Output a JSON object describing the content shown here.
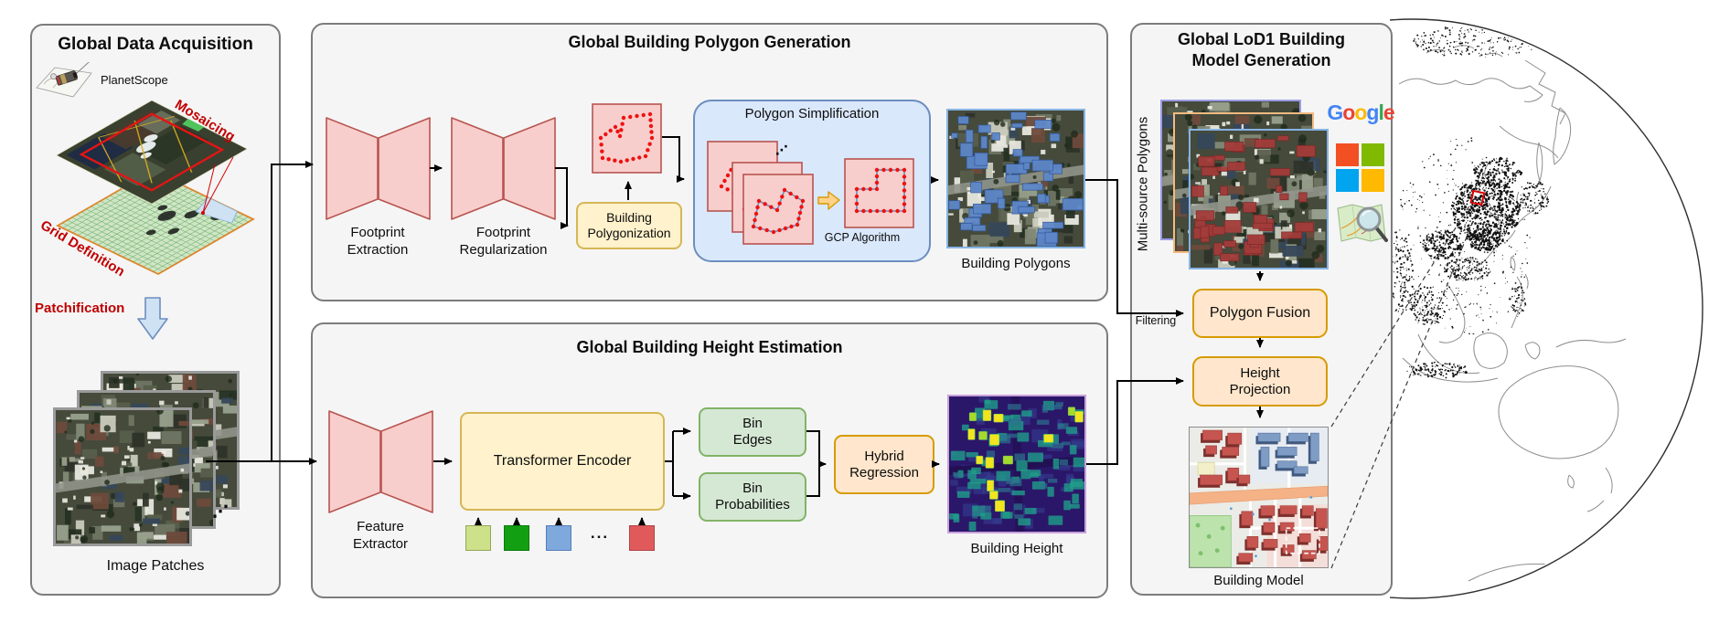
{
  "acq": {
    "title": "Global Data Acquisition",
    "planetscope": "PlanetScope",
    "mosaicing": "Mosaicing",
    "grid_definition": "Grid Definition",
    "patchification": "Patchification",
    "image_patches": "Image Patches",
    "stack_dots": "⋰"
  },
  "pg": {
    "title": "Global Building Polygon Generation",
    "footprint_extraction": "Footprint Extraction",
    "footprint_regularization": "Footprint Regularization",
    "building_polygonization": "Building Polygonization",
    "polygon_simplification": "Polygon Simplification",
    "gcp_algorithm": "GCP Algorithm",
    "building_polygons": "Building Polygons",
    "stack_dots": "⋰"
  },
  "he": {
    "title": "Global Building Height Estimation",
    "feature_extractor": "Feature Extractor",
    "transformer_encoder": "Transformer Encoder",
    "bin_edges": "Bin Edges",
    "bin_probabilities": "Bin Probabilities",
    "hybrid_regression": "Hybrid Regression",
    "building_height": "Building Height",
    "token_dots": "..."
  },
  "lod": {
    "title_line1": "Global LoD1 Building",
    "title_line2": "Model Generation",
    "multi_source": "Multi-source Polygons",
    "filtering": "Filtering",
    "polygon_fusion": "Polygon Fusion",
    "height_projection": "Height Projection",
    "building_model": "Building Model"
  },
  "logos": {
    "google": {
      "text": "Google",
      "colors": [
        "#4285F4",
        "#EA4335",
        "#FBBC05",
        "#4285F4",
        "#34A853",
        "#EA4335"
      ]
    },
    "microsoft_colors": [
      "#F25022",
      "#7FBA00",
      "#00A4EF",
      "#FFB900"
    ]
  },
  "colors": {
    "panel_bg": "#F5F5F5",
    "panel_border": "#7C7C7C",
    "shape_pink_fill": "#F8CECC",
    "shape_pink_stroke": "#B85450",
    "box_yellow_fill": "#FFF2CC",
    "box_yellow_stroke": "#D6B656",
    "box_orange_fill": "#FFE6CC",
    "box_orange_stroke": "#D79B00",
    "box_green_fill": "#D5E8D4",
    "box_green_stroke": "#82B366",
    "container_blue_fill": "#DAE8FC",
    "container_blue_stroke": "#6C8EBF",
    "annotation_red": "#C00000",
    "polygon_overlay_blue": "#5D87C8",
    "polygon_overlay_red": "#A33C3A",
    "globe_marker_red": "#DD0000"
  }
}
